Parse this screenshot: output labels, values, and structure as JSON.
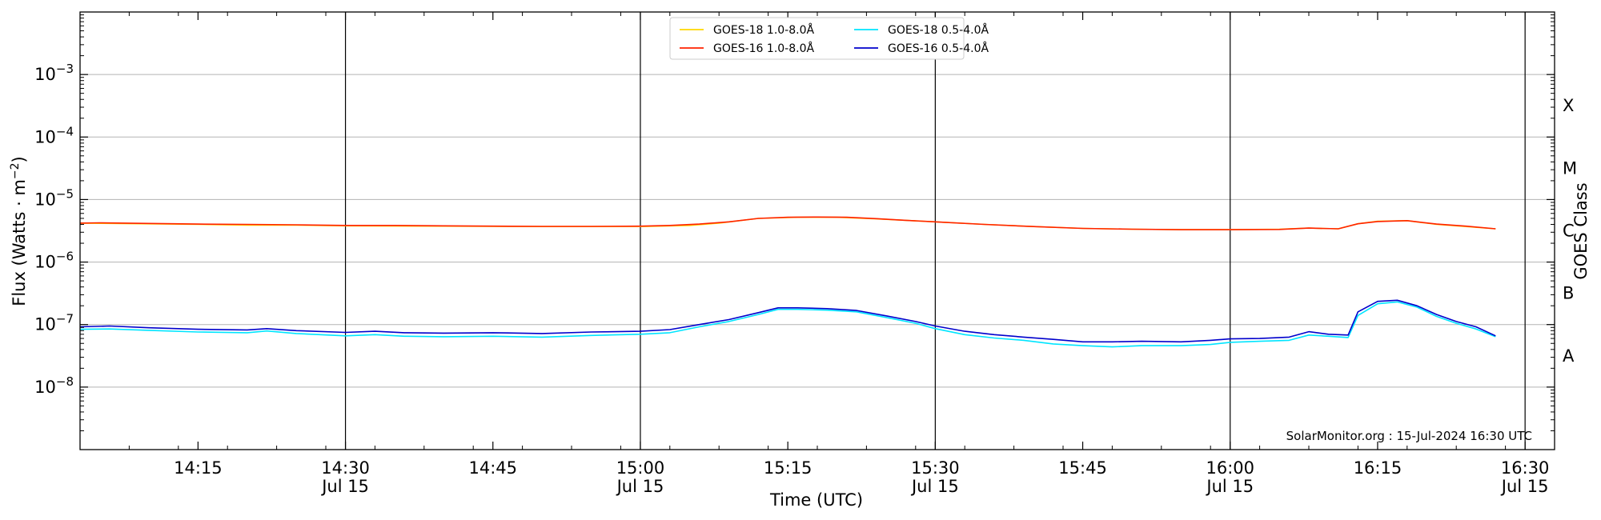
{
  "chart_data": {
    "type": "line",
    "xlabel": "Time (UTC)",
    "ylabel_prefix": "Flux (Watts · m",
    "ylabel_sup": "−2",
    "ylabel_suffix": ")",
    "y2label": "GOES Class",
    "y_scale": "log",
    "ylim": [
      1e-09,
      0.01
    ],
    "xlim": [
      "14:03",
      "16:33"
    ],
    "grid": "horizontal at decades",
    "legend_position": "top-center",
    "credit": "SolarMonitor.org : 15-Jul-2024 16:30 UTC",
    "y_ticks": [
      {
        "value": 1e-08,
        "exp": "−8"
      },
      {
        "value": 1e-07,
        "exp": "−7"
      },
      {
        "value": 1e-06,
        "exp": "−6"
      },
      {
        "value": 1e-05,
        "exp": "−5"
      },
      {
        "value": 0.0001,
        "exp": "−4"
      },
      {
        "value": 0.001,
        "exp": "−3"
      }
    ],
    "y_tick_base": "10",
    "x_ticks": [
      {
        "time": "14:15",
        "label": "14:15",
        "sub": "",
        "major": false
      },
      {
        "time": "14:30",
        "label": "14:30",
        "sub": "Jul 15",
        "major": true
      },
      {
        "time": "14:45",
        "label": "14:45",
        "sub": "",
        "major": false
      },
      {
        "time": "15:00",
        "label": "15:00",
        "sub": "Jul 15",
        "major": true
      },
      {
        "time": "15:15",
        "label": "15:15",
        "sub": "",
        "major": false
      },
      {
        "time": "15:30",
        "label": "15:30",
        "sub": "Jul 15",
        "major": true
      },
      {
        "time": "15:45",
        "label": "15:45",
        "sub": "",
        "major": false
      },
      {
        "time": "16:00",
        "label": "16:00",
        "sub": "Jul 15",
        "major": true
      },
      {
        "time": "16:15",
        "label": "16:15",
        "sub": "",
        "major": false
      },
      {
        "time": "16:30",
        "label": "16:30",
        "sub": "Jul 15",
        "major": true
      }
    ],
    "goes_classes": [
      {
        "label": "A",
        "value": 3.16e-08
      },
      {
        "label": "B",
        "value": 3.16e-07
      },
      {
        "label": "C",
        "value": 3.16e-06
      },
      {
        "label": "M",
        "value": 3.16e-05
      },
      {
        "label": "X",
        "value": 0.000316
      }
    ],
    "legend": [
      {
        "name": "GOES-18 1.0-8.0Å",
        "color": "#ffd700"
      },
      {
        "name": "GOES-18 0.5-4.0Å",
        "color": "#00e5ff"
      },
      {
        "name": "GOES-16 1.0-8.0Å",
        "color": "#ff2200"
      },
      {
        "name": "GOES-16 0.5-4.0Å",
        "color": "#0000cc"
      }
    ],
    "series": [
      {
        "name": "GOES-18 1.0-8.0Å",
        "color": "#ffd700",
        "width": 1.6,
        "points": [
          [
            "14:03",
            4.2e-06
          ],
          [
            "14:15",
            4e-06
          ],
          [
            "14:20",
            3.9e-06
          ],
          [
            "14:25",
            3.9e-06
          ],
          [
            "14:30",
            3.8e-06
          ],
          [
            "14:40",
            3.75e-06
          ],
          [
            "14:50",
            3.7e-06
          ],
          [
            "15:00",
            3.7e-06
          ],
          [
            "15:05",
            3.85e-06
          ],
          [
            "15:08",
            4.2e-06
          ],
          [
            "15:12",
            5e-06
          ],
          [
            "15:16",
            5.2e-06
          ],
          [
            "15:20",
            5.2e-06
          ],
          [
            "15:24",
            4.9e-06
          ],
          [
            "15:30",
            4.4e-06
          ],
          [
            "15:35",
            4e-06
          ],
          [
            "15:40",
            3.7e-06
          ],
          [
            "15:45",
            3.45e-06
          ],
          [
            "15:50",
            3.35e-06
          ],
          [
            "15:55",
            3.3e-06
          ],
          [
            "16:00",
            3.3e-06
          ],
          [
            "16:05",
            3.35e-06
          ],
          [
            "16:08",
            3.5e-06
          ],
          [
            "16:11",
            3.4e-06
          ],
          [
            "16:13",
            4.1e-06
          ],
          [
            "16:15",
            4.5e-06
          ],
          [
            "16:18",
            4.6e-06
          ],
          [
            "16:21",
            4e-06
          ],
          [
            "16:24",
            3.7e-06
          ],
          [
            "16:27",
            3.4e-06
          ]
        ]
      },
      {
        "name": "GOES-16 1.0-8.0Å",
        "color": "#ff2200",
        "width": 1.6,
        "points": [
          [
            "14:03",
            4.2e-06
          ],
          [
            "14:05",
            4.25e-06
          ],
          [
            "14:10",
            4.15e-06
          ],
          [
            "14:15",
            4.05e-06
          ],
          [
            "14:20",
            4e-06
          ],
          [
            "14:25",
            3.95e-06
          ],
          [
            "14:30",
            3.85e-06
          ],
          [
            "14:35",
            3.85e-06
          ],
          [
            "14:40",
            3.8e-06
          ],
          [
            "14:45",
            3.75e-06
          ],
          [
            "14:50",
            3.72e-06
          ],
          [
            "14:55",
            3.72e-06
          ],
          [
            "15:00",
            3.75e-06
          ],
          [
            "15:03",
            3.85e-06
          ],
          [
            "15:06",
            4.05e-06
          ],
          [
            "15:09",
            4.4e-06
          ],
          [
            "15:12",
            5e-06
          ],
          [
            "15:15",
            5.2e-06
          ],
          [
            "15:18",
            5.25e-06
          ],
          [
            "15:21",
            5.2e-06
          ],
          [
            "15:24",
            4.95e-06
          ],
          [
            "15:27",
            4.65e-06
          ],
          [
            "15:30",
            4.4e-06
          ],
          [
            "15:35",
            4e-06
          ],
          [
            "15:40",
            3.7e-06
          ],
          [
            "15:45",
            3.45e-06
          ],
          [
            "15:50",
            3.35e-06
          ],
          [
            "15:55",
            3.3e-06
          ],
          [
            "16:00",
            3.3e-06
          ],
          [
            "16:05",
            3.32e-06
          ],
          [
            "16:08",
            3.5e-06
          ],
          [
            "16:11",
            3.4e-06
          ],
          [
            "16:13",
            4.1e-06
          ],
          [
            "16:15",
            4.45e-06
          ],
          [
            "16:18",
            4.6e-06
          ],
          [
            "16:21",
            4.05e-06
          ],
          [
            "16:24",
            3.75e-06
          ],
          [
            "16:27",
            3.4e-06
          ]
        ]
      },
      {
        "name": "GOES-18 0.5-4.0Å",
        "color": "#00e5ff",
        "width": 1.6,
        "points": [
          [
            "14:03",
            8.4e-08
          ],
          [
            "14:06",
            8.5e-08
          ],
          [
            "14:10",
            8.1e-08
          ],
          [
            "14:15",
            7.6e-08
          ],
          [
            "14:20",
            7.4e-08
          ],
          [
            "14:22",
            7.9e-08
          ],
          [
            "14:25",
            7.2e-08
          ],
          [
            "14:30",
            6.6e-08
          ],
          [
            "14:33",
            6.9e-08
          ],
          [
            "14:36",
            6.5e-08
          ],
          [
            "14:40",
            6.4e-08
          ],
          [
            "14:45",
            6.5e-08
          ],
          [
            "14:50",
            6.3e-08
          ],
          [
            "14:55",
            6.7e-08
          ],
          [
            "15:00",
            7e-08
          ],
          [
            "15:03",
            7.4e-08
          ],
          [
            "15:06",
            9.2e-08
          ],
          [
            "15:09",
            1.12e-07
          ],
          [
            "15:12",
            1.45e-07
          ],
          [
            "15:14",
            1.75e-07
          ],
          [
            "15:16",
            1.75e-07
          ],
          [
            "15:19",
            1.7e-07
          ],
          [
            "15:22",
            1.6e-07
          ],
          [
            "15:25",
            1.3e-07
          ],
          [
            "15:28",
            1.05e-07
          ],
          [
            "15:30",
            8.6e-08
          ],
          [
            "15:33",
            6.9e-08
          ],
          [
            "15:36",
            6.1e-08
          ],
          [
            "15:39",
            5.6e-08
          ],
          [
            "15:42",
            4.9e-08
          ],
          [
            "15:45",
            4.6e-08
          ],
          [
            "15:48",
            4.4e-08
          ],
          [
            "15:51",
            4.6e-08
          ],
          [
            "15:55",
            4.6e-08
          ],
          [
            "15:58",
            4.8e-08
          ],
          [
            "16:00",
            5.2e-08
          ],
          [
            "16:03",
            5.4e-08
          ],
          [
            "16:06",
            5.6e-08
          ],
          [
            "16:08",
            6.8e-08
          ],
          [
            "16:10",
            6.5e-08
          ],
          [
            "16:12",
            6.2e-08
          ],
          [
            "16:13",
            1.4e-07
          ],
          [
            "16:15",
            2.15e-07
          ],
          [
            "16:17",
            2.3e-07
          ],
          [
            "16:19",
            1.9e-07
          ],
          [
            "16:21",
            1.35e-07
          ],
          [
            "16:23",
            1.05e-07
          ],
          [
            "16:25",
            8.5e-08
          ],
          [
            "16:27",
            6.4e-08
          ]
        ]
      },
      {
        "name": "GOES-16 0.5-4.0Å",
        "color": "#0000cc",
        "width": 1.6,
        "points": [
          [
            "14:03",
            9.2e-08
          ],
          [
            "14:06",
            9.5e-08
          ],
          [
            "14:10",
            8.9e-08
          ],
          [
            "14:15",
            8.4e-08
          ],
          [
            "14:20",
            8.2e-08
          ],
          [
            "14:22",
            8.6e-08
          ],
          [
            "14:25",
            8e-08
          ],
          [
            "14:30",
            7.5e-08
          ],
          [
            "14:33",
            7.8e-08
          ],
          [
            "14:36",
            7.4e-08
          ],
          [
            "14:40",
            7.3e-08
          ],
          [
            "14:45",
            7.4e-08
          ],
          [
            "14:50",
            7.2e-08
          ],
          [
            "14:55",
            7.6e-08
          ],
          [
            "15:00",
            7.8e-08
          ],
          [
            "15:03",
            8.3e-08
          ],
          [
            "15:06",
            1e-07
          ],
          [
            "15:09",
            1.2e-07
          ],
          [
            "15:12",
            1.55e-07
          ],
          [
            "15:14",
            1.85e-07
          ],
          [
            "15:16",
            1.85e-07
          ],
          [
            "15:19",
            1.8e-07
          ],
          [
            "15:22",
            1.68e-07
          ],
          [
            "15:25",
            1.38e-07
          ],
          [
            "15:28",
            1.12e-07
          ],
          [
            "15:30",
            9.5e-08
          ],
          [
            "15:33",
            7.8e-08
          ],
          [
            "15:36",
            6.9e-08
          ],
          [
            "15:39",
            6.3e-08
          ],
          [
            "15:42",
            5.8e-08
          ],
          [
            "15:45",
            5.3e-08
          ],
          [
            "15:48",
            5.3e-08
          ],
          [
            "15:51",
            5.4e-08
          ],
          [
            "15:55",
            5.3e-08
          ],
          [
            "15:58",
            5.6e-08
          ],
          [
            "16:00",
            5.9e-08
          ],
          [
            "16:03",
            6e-08
          ],
          [
            "16:06",
            6.3e-08
          ],
          [
            "16:08",
            7.7e-08
          ],
          [
            "16:10",
            7e-08
          ],
          [
            "16:12",
            6.8e-08
          ],
          [
            "16:13",
            1.6e-07
          ],
          [
            "16:15",
            2.35e-07
          ],
          [
            "16:17",
            2.45e-07
          ],
          [
            "16:19",
            2e-07
          ],
          [
            "16:21",
            1.45e-07
          ],
          [
            "16:23",
            1.12e-07
          ],
          [
            "16:25",
            9.2e-08
          ],
          [
            "16:27",
            6.6e-08
          ]
        ]
      }
    ]
  }
}
